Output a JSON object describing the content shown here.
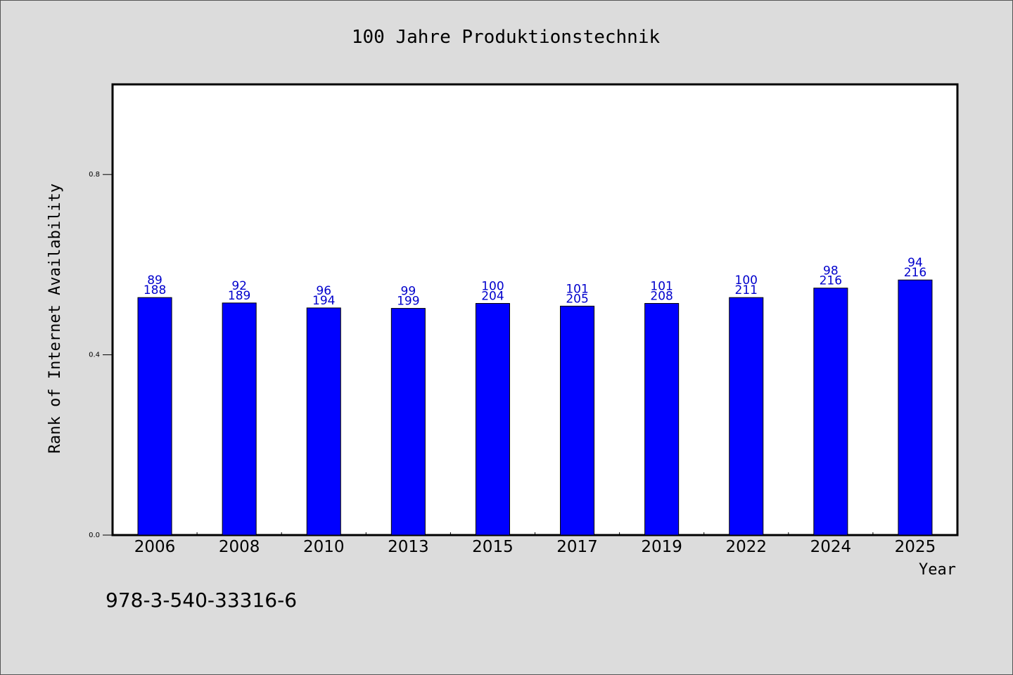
{
  "chart_data": {
    "type": "bar",
    "title": "100 Jahre Produktionstechnik",
    "xlabel": "Year",
    "ylabel": "Rank of Internet Availability",
    "categories": [
      "2006",
      "2008",
      "2010",
      "2013",
      "2015",
      "2017",
      "2019",
      "2022",
      "2024",
      "2025"
    ],
    "values": [
      0.527,
      0.515,
      0.504,
      0.503,
      0.514,
      0.508,
      0.514,
      0.527,
      0.548,
      0.566
    ],
    "labels_top": [
      "89",
      "92",
      "96",
      "99",
      "100",
      "101",
      "101",
      "100",
      "98",
      "94"
    ],
    "labels_bottom": [
      "188",
      "189",
      "194",
      "199",
      "204",
      "205",
      "208",
      "211",
      "216",
      "216"
    ],
    "ylim": [
      0,
      1.0
    ],
    "yticks": [
      "0.0",
      "0.4",
      "0.8"
    ],
    "grid": false,
    "colors": {
      "bar": "#0000ff",
      "label": "#0000cc",
      "background": "#dcdcdc",
      "plot_bg": "#ffffff"
    }
  },
  "footer": {
    "isbn": "978-3-540-33316-6"
  }
}
